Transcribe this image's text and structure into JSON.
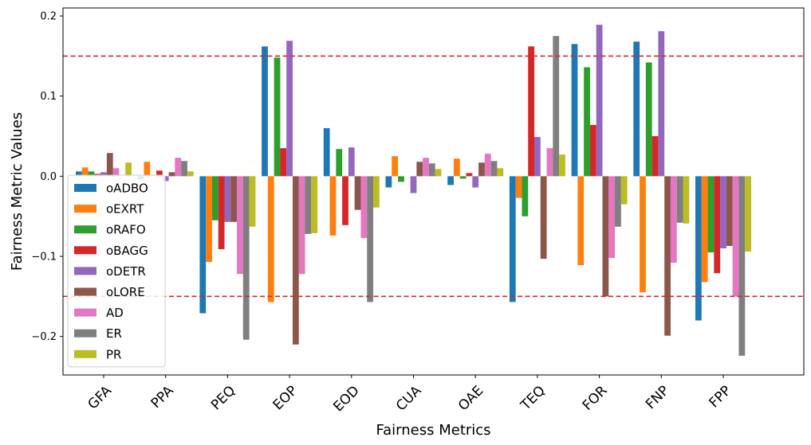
{
  "chart_data": {
    "type": "bar",
    "title": "",
    "xlabel": "Fairness Metrics",
    "ylabel": "Fairness Metric Values",
    "ylim": [
      -0.248,
      0.21
    ],
    "yticks": [
      -0.2,
      -0.1,
      0.0,
      0.1,
      0.2
    ],
    "ytick_labels": [
      "−0.2",
      "−0.1",
      "0.0",
      "0.1",
      "0.2"
    ],
    "categories": [
      "GFA",
      "PPA",
      "PEQ",
      "EOP",
      "EOD",
      "CUA",
      "OAE",
      "TEQ",
      "FOR",
      "FNP",
      "FPP"
    ],
    "thresholds": [
      0.15,
      -0.15
    ],
    "threshold_color": "#d62728",
    "legend_position": "lower-left",
    "grid": false,
    "series": [
      {
        "name": "oADBO",
        "color": "#1f77b4",
        "values": [
          0.006,
          -0.004,
          -0.171,
          0.162,
          0.06,
          -0.014,
          -0.011,
          -0.157,
          0.165,
          0.168,
          -0.18
        ]
      },
      {
        "name": "oEXRT",
        "color": "#ff7f0e",
        "values": [
          0.011,
          0.018,
          -0.107,
          -0.157,
          -0.074,
          0.025,
          0.022,
          -0.027,
          -0.111,
          -0.145,
          -0.132
        ]
      },
      {
        "name": "oRAFO",
        "color": "#2ca02c",
        "values": [
          0.006,
          0.0,
          -0.055,
          0.148,
          0.034,
          -0.007,
          -0.003,
          -0.05,
          0.136,
          0.142,
          -0.095
        ]
      },
      {
        "name": "oBAGG",
        "color": "#d62728",
        "values": [
          0.003,
          0.007,
          -0.091,
          0.035,
          -0.061,
          0.0,
          0.004,
          0.162,
          0.064,
          0.05,
          -0.121
        ]
      },
      {
        "name": "oDETR",
        "color": "#9467bd",
        "values": [
          0.005,
          -0.006,
          -0.057,
          0.169,
          0.036,
          -0.021,
          -0.014,
          0.049,
          0.189,
          0.181,
          -0.09
        ]
      },
      {
        "name": "oLORE",
        "color": "#8c564b",
        "values": [
          0.029,
          0.005,
          -0.057,
          -0.21,
          -0.042,
          0.018,
          0.017,
          -0.103,
          -0.15,
          -0.199,
          -0.087
        ]
      },
      {
        "name": "AD",
        "color": "#e377c2",
        "values": [
          0.01,
          0.023,
          -0.122,
          -0.122,
          -0.077,
          0.023,
          0.028,
          0.035,
          -0.102,
          -0.108,
          -0.15
        ]
      },
      {
        "name": "ER",
        "color": "#7f7f7f",
        "values": [
          0.0,
          0.019,
          -0.204,
          -0.072,
          -0.157,
          0.016,
          0.019,
          0.175,
          -0.063,
          -0.058,
          -0.224
        ]
      },
      {
        "name": "PR",
        "color": "#bcbd22",
        "values": [
          0.017,
          0.006,
          -0.063,
          -0.071,
          -0.039,
          0.009,
          0.01,
          0.027,
          -0.035,
          -0.059,
          -0.094
        ]
      }
    ]
  }
}
